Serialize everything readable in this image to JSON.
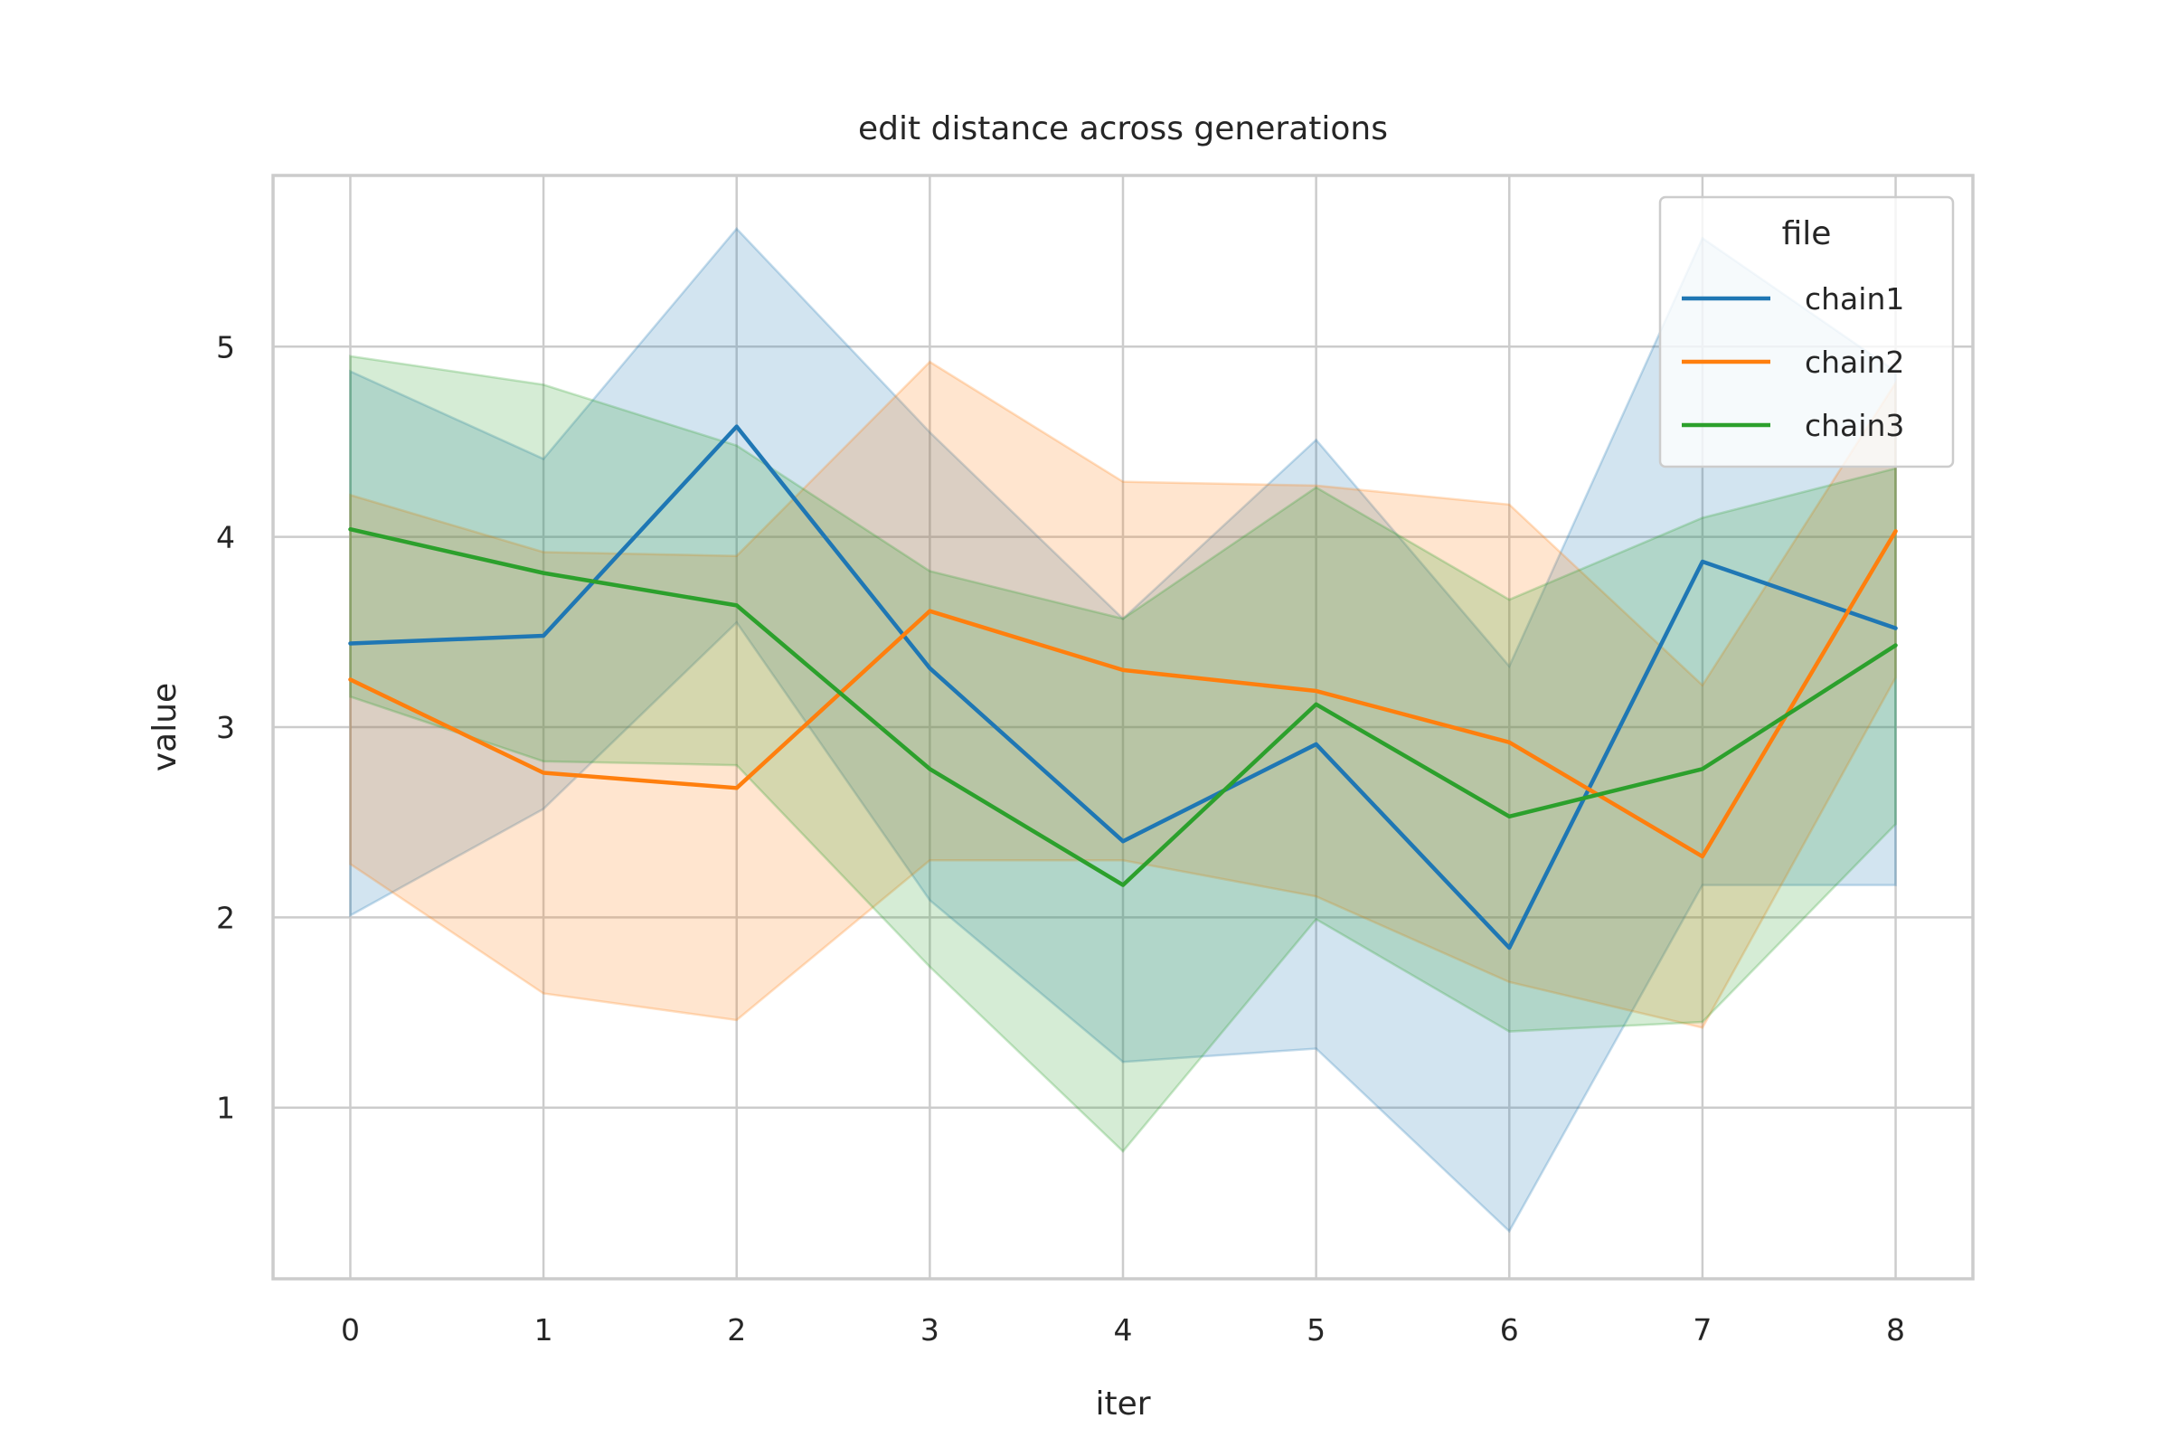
{
  "chart_data": {
    "type": "line",
    "title": "edit distance across generations",
    "xlabel": "iter",
    "ylabel": "value",
    "x": [
      0,
      1,
      2,
      3,
      4,
      5,
      6,
      7,
      8
    ],
    "xlim": [
      -0.4,
      8.4
    ],
    "ylim": [
      0.1,
      5.9
    ],
    "xticks": [
      "0",
      "1",
      "2",
      "3",
      "4",
      "5",
      "6",
      "7",
      "8"
    ],
    "yticks": [
      "1",
      "2",
      "3",
      "4",
      "5"
    ],
    "grid": true,
    "legend": {
      "title": "file",
      "placement": "top-right"
    },
    "series": [
      {
        "name": "chain1",
        "color": "#1f77b4",
        "values": [
          3.44,
          3.48,
          4.58,
          3.31,
          2.4,
          2.91,
          1.84,
          3.87,
          3.52
        ],
        "lower": [
          2.01,
          2.57,
          3.55,
          2.09,
          1.24,
          1.31,
          0.35,
          2.17,
          2.17
        ],
        "upper": [
          4.87,
          4.41,
          5.62,
          4.55,
          3.57,
          4.51,
          3.32,
          5.57,
          4.87
        ]
      },
      {
        "name": "chain2",
        "color": "#ff7f0e",
        "values": [
          3.25,
          2.76,
          2.68,
          3.61,
          3.3,
          3.19,
          2.92,
          2.32,
          4.03
        ],
        "lower": [
          2.28,
          1.6,
          1.46,
          2.3,
          2.3,
          2.11,
          1.66,
          1.42,
          3.26
        ],
        "upper": [
          4.22,
          3.92,
          3.9,
          4.92,
          4.29,
          4.27,
          4.17,
          3.22,
          4.81
        ]
      },
      {
        "name": "chain3",
        "color": "#2ca02c",
        "values": [
          4.04,
          3.81,
          3.64,
          2.78,
          2.17,
          3.12,
          2.53,
          2.78,
          3.43
        ],
        "lower": [
          3.16,
          2.82,
          2.8,
          1.74,
          0.77,
          1.99,
          1.4,
          1.45,
          2.49
        ],
        "upper": [
          4.95,
          4.8,
          4.48,
          3.82,
          3.57,
          4.26,
          3.67,
          4.1,
          4.36
        ]
      }
    ]
  }
}
